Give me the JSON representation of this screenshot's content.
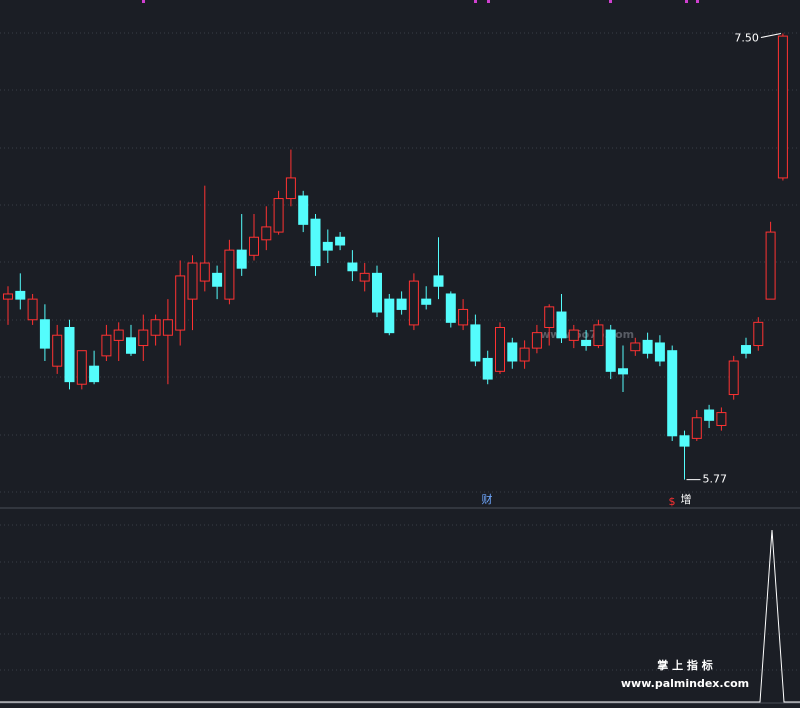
{
  "chart_data": {
    "type": "candlestick",
    "up_color": "#ff3232",
    "down_color": "#54fcfc",
    "ylim": [
      5.66,
      7.63
    ],
    "ohlc": [
      [
        6.47,
        6.52,
        6.37,
        6.49
      ],
      [
        6.5,
        6.57,
        6.43,
        6.47
      ],
      [
        6.39,
        6.49,
        6.37,
        6.47
      ],
      [
        6.39,
        6.45,
        6.23,
        6.28
      ],
      [
        6.21,
        6.37,
        6.18,
        6.33
      ],
      [
        6.36,
        6.39,
        6.12,
        6.15
      ],
      [
        6.14,
        6.27,
        6.12,
        6.27
      ],
      [
        6.21,
        6.27,
        6.14,
        6.15
      ],
      [
        6.25,
        6.37,
        6.23,
        6.33
      ],
      [
        6.31,
        6.38,
        6.23,
        6.35
      ],
      [
        6.32,
        6.37,
        6.25,
        6.26
      ],
      [
        6.29,
        6.41,
        6.23,
        6.35
      ],
      [
        6.33,
        6.41,
        6.29,
        6.39
      ],
      [
        6.33,
        6.47,
        6.14,
        6.39
      ],
      [
        6.35,
        6.62,
        6.29,
        6.56
      ],
      [
        6.47,
        6.64,
        6.35,
        6.61
      ],
      [
        6.54,
        6.91,
        6.5,
        6.61
      ],
      [
        6.57,
        6.6,
        6.47,
        6.52
      ],
      [
        6.47,
        6.7,
        6.45,
        6.66
      ],
      [
        6.66,
        6.8,
        6.56,
        6.59
      ],
      [
        6.64,
        6.8,
        6.62,
        6.71
      ],
      [
        6.7,
        6.83,
        6.66,
        6.75
      ],
      [
        6.73,
        6.89,
        6.72,
        6.86
      ],
      [
        6.86,
        7.05,
        6.83,
        6.94
      ],
      [
        6.87,
        6.89,
        6.73,
        6.76
      ],
      [
        6.78,
        6.8,
        6.56,
        6.6
      ],
      [
        6.69,
        6.74,
        6.61,
        6.66
      ],
      [
        6.71,
        6.73,
        6.66,
        6.68
      ],
      [
        6.61,
        6.66,
        6.54,
        6.58
      ],
      [
        6.54,
        6.61,
        6.5,
        6.57
      ],
      [
        6.57,
        6.6,
        6.4,
        6.42
      ],
      [
        6.47,
        6.49,
        6.33,
        6.34
      ],
      [
        6.47,
        6.5,
        6.41,
        6.43
      ],
      [
        6.37,
        6.57,
        6.35,
        6.54
      ],
      [
        6.47,
        6.52,
        6.43,
        6.45
      ],
      [
        6.56,
        6.71,
        6.47,
        6.52
      ],
      [
        6.49,
        6.5,
        6.36,
        6.38
      ],
      [
        6.37,
        6.47,
        6.35,
        6.43
      ],
      [
        6.37,
        6.41,
        6.21,
        6.23
      ],
      [
        6.24,
        6.27,
        6.14,
        6.16
      ],
      [
        6.19,
        6.38,
        6.18,
        6.36
      ],
      [
        6.3,
        6.32,
        6.2,
        6.23
      ],
      [
        6.23,
        6.31,
        6.2,
        6.28
      ],
      [
        6.28,
        6.37,
        6.26,
        6.34
      ],
      [
        6.36,
        6.45,
        6.29,
        6.44
      ],
      [
        6.42,
        6.49,
        6.3,
        6.32
      ],
      [
        6.31,
        6.37,
        6.28,
        6.35
      ],
      [
        6.31,
        6.35,
        6.27,
        6.29
      ],
      [
        6.29,
        6.39,
        6.28,
        6.37
      ],
      [
        6.35,
        6.37,
        6.16,
        6.19
      ],
      [
        6.2,
        6.29,
        6.11,
        6.18
      ],
      [
        6.27,
        6.32,
        6.25,
        6.3
      ],
      [
        6.31,
        6.34,
        6.24,
        6.26
      ],
      [
        6.3,
        6.33,
        6.21,
        6.23
      ],
      [
        6.27,
        6.29,
        5.92,
        5.94
      ],
      [
        5.94,
        5.96,
        5.77,
        5.9
      ],
      [
        5.93,
        6.04,
        5.92,
        6.01
      ],
      [
        6.04,
        6.06,
        5.97,
        6.0
      ],
      [
        5.98,
        6.05,
        5.96,
        6.03
      ],
      [
        6.1,
        6.25,
        6.08,
        6.23
      ],
      [
        6.29,
        6.32,
        6.24,
        6.26
      ],
      [
        6.29,
        6.4,
        6.27,
        6.38
      ],
      [
        6.47,
        6.77,
        6.47,
        6.73
      ],
      [
        6.94,
        7.5,
        6.93,
        7.49
      ]
    ],
    "annotations": [
      {
        "value": 7.5,
        "label": "7.50"
      },
      {
        "value": 5.77,
        "label": "5.77"
      }
    ],
    "markers": [
      "财",
      "$",
      "增"
    ],
    "watermarks": [
      "www.6o7o.com",
      "掌 上 指 标",
      "www.palmindex.com"
    ]
  }
}
